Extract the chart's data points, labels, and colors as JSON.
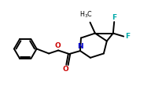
{
  "bg_color": "#ffffff",
  "bond_color": "#000000",
  "N_color": "#0000cd",
  "O_color": "#cc0000",
  "F_color": "#00aaaa",
  "bond_width": 1.4,
  "figsize": [
    1.92,
    1.19
  ],
  "dpi": 100,
  "xlim": [
    0.0,
    9.5
  ],
  "ylim": [
    0.8,
    5.2
  ]
}
